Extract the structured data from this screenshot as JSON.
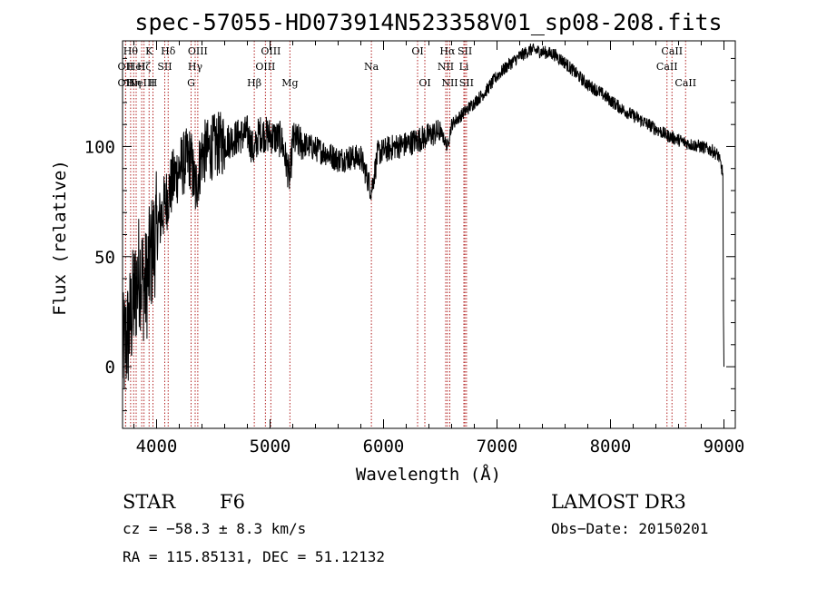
{
  "title": "spec-57055-HD073914N523358V01_sp08-208.fits",
  "info": {
    "class_label": "STAR",
    "subclass_label": "F6",
    "survey": "LAMOST DR3",
    "cz": "cz = −58.3 ± 8.3 km/s",
    "obs_date": "Obs−Date: 20150201",
    "coords": "RA = 115.85131, DEC =  51.12132"
  },
  "chart_data": {
    "type": "line",
    "title": "spec-57055-HD073914N523358V01_sp08-208.fits",
    "xlabel": "Wavelength (Å)",
    "ylabel": "Flux (relative)",
    "xlim": [
      3700,
      9100
    ],
    "ylim": [
      -28,
      148
    ],
    "x_ticks": [
      4000,
      5000,
      6000,
      7000,
      8000,
      9000
    ],
    "x_tick_labels": [
      "4000",
      "5000",
      "6000",
      "7000",
      "8000",
      "9000"
    ],
    "y_ticks": [
      0,
      50,
      100
    ],
    "y_tick_labels": [
      "0",
      "50",
      "100"
    ],
    "grid": false,
    "series": [
      {
        "color": "#000000",
        "x": [
          3700,
          3750,
          3800,
          3850,
          3900,
          3950,
          4000,
          4050,
          4100,
          4150,
          4200,
          4250,
          4300,
          4340,
          4400,
          4450,
          4500,
          4550,
          4600,
          4700,
          4800,
          4861,
          4900,
          5000,
          5100,
          5175,
          5200,
          5300,
          5400,
          5500,
          5600,
          5700,
          5800,
          5893,
          5950,
          6000,
          6100,
          6200,
          6300,
          6400,
          6500,
          6563,
          6600,
          6700,
          6800,
          6900,
          7000,
          7100,
          7200,
          7300,
          7400,
          7500,
          7600,
          7700,
          7800,
          7900,
          8000,
          8100,
          8200,
          8300,
          8400,
          8500,
          8600,
          8700,
          8800,
          8900,
          8950,
          8990
        ],
        "y": [
          5,
          15,
          30,
          45,
          35,
          50,
          62,
          70,
          78,
          85,
          90,
          93,
          95,
          80,
          97,
          98,
          100,
          101,
          102,
          104,
          106,
          97,
          106,
          105,
          103,
          85,
          103,
          101,
          99,
          97,
          94,
          95,
          95,
          80,
          97,
          98,
          100,
          101,
          103,
          105,
          107,
          100,
          110,
          115,
          120,
          125,
          132,
          137,
          141,
          144,
          143,
          142,
          138,
          133,
          128,
          125,
          121,
          117,
          114,
          111,
          108,
          105,
          103,
          101,
          100,
          98,
          96,
          88
        ]
      }
    ],
    "reference_lines": [
      {
        "wavelength": 3727,
        "label": "OII",
        "row": 2
      },
      {
        "wavelength": 3727,
        "label": "OII",
        "row": 3
      },
      {
        "wavelength": 3771,
        "label": "Hθ",
        "row": 1
      },
      {
        "wavelength": 3798,
        "label": "Hη",
        "row": 3
      },
      {
        "wavelength": 3820,
        "label": "HeI",
        "row": 2
      },
      {
        "wavelength": 3869,
        "label": "NeIII",
        "row": 3
      },
      {
        "wavelength": 3889,
        "label": "Hζ",
        "row": 2
      },
      {
        "wavelength": 3934,
        "label": "K",
        "row": 1
      },
      {
        "wavelength": 3968,
        "label": "H",
        "row": 3
      },
      {
        "wavelength": 4072,
        "label": "SII",
        "row": 2
      },
      {
        "wavelength": 4102,
        "label": "Hδ",
        "row": 1
      },
      {
        "wavelength": 4304,
        "label": "G",
        "row": 3
      },
      {
        "wavelength": 4340,
        "label": "Hγ",
        "row": 2
      },
      {
        "wavelength": 4363,
        "label": "OIII",
        "row": 1
      },
      {
        "wavelength": 4861,
        "label": "Hβ",
        "row": 3
      },
      {
        "wavelength": 4959,
        "label": "OIII",
        "row": 2
      },
      {
        "wavelength": 5007,
        "label": "OIII",
        "row": 1
      },
      {
        "wavelength": 5175,
        "label": "Mg",
        "row": 3
      },
      {
        "wavelength": 5893,
        "label": "Na",
        "row": 2
      },
      {
        "wavelength": 6300,
        "label": "OI",
        "row": 1
      },
      {
        "wavelength": 6364,
        "label": "OI",
        "row": 3
      },
      {
        "wavelength": 6548,
        "label": "NII",
        "row": 2
      },
      {
        "wavelength": 6563,
        "label": "Hα",
        "row": 1
      },
      {
        "wavelength": 6584,
        "label": "NII",
        "row": 3
      },
      {
        "wavelength": 6708,
        "label": "Li",
        "row": 2
      },
      {
        "wavelength": 6717,
        "label": "SII",
        "row": 1
      },
      {
        "wavelength": 6731,
        "label": "SII",
        "row": 3
      },
      {
        "wavelength": 8498,
        "label": "CaII",
        "row": 2
      },
      {
        "wavelength": 8542,
        "label": "CaII",
        "row": 1
      },
      {
        "wavelength": 8662,
        "label": "CaII",
        "row": 3
      }
    ]
  }
}
